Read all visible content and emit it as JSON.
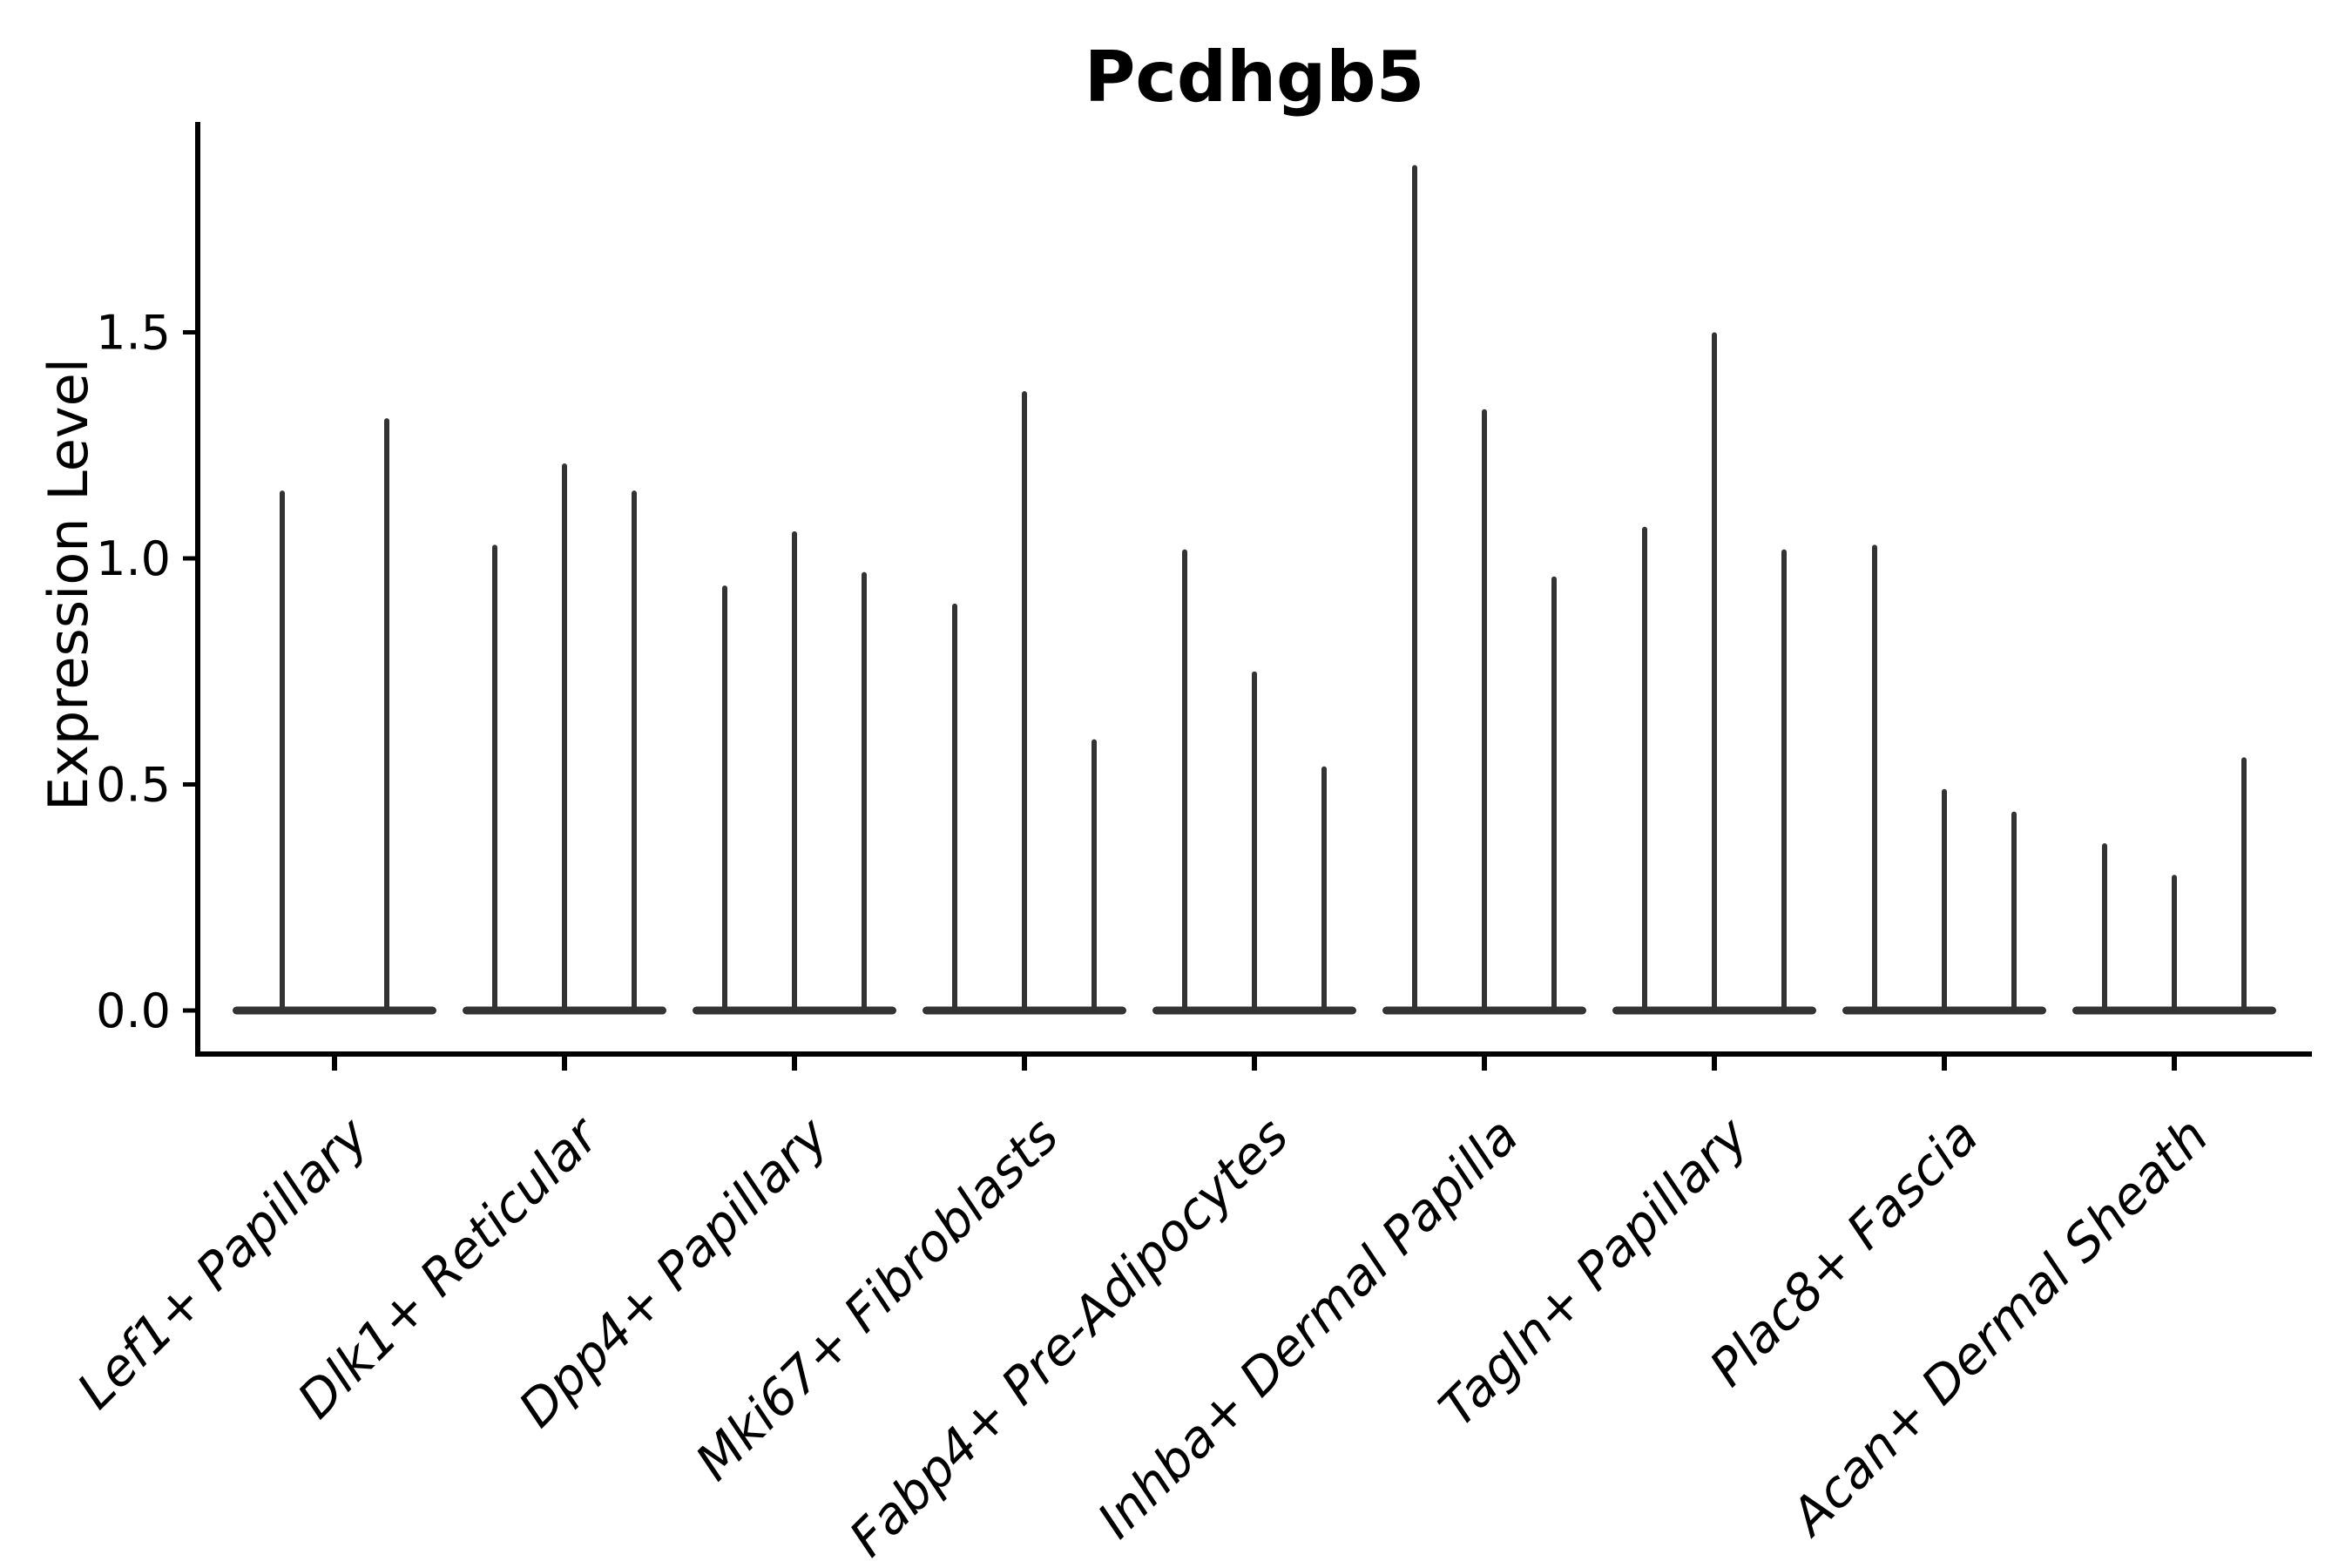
{
  "chart_data": {
    "type": "violin",
    "title": "Pcdhgb5",
    "xlabel": "",
    "ylabel": "Expression Level",
    "y_ticks": [
      0.0,
      0.5,
      1.0,
      1.5
    ],
    "y_tick_labels": [
      "0.0",
      "0.5",
      "1.0",
      "1.5"
    ],
    "ylim": [
      -0.1,
      1.95
    ],
    "grid": false,
    "legend": false,
    "baseline_value": 0,
    "description": "Violin plot of Pcdhgb5 expression per fibroblast cluster; each cluster shows 2-3 narrow spike-shaped violins (mass concentrated at 0 with thin tails up to the max expression value).",
    "violin_color": "#333333",
    "axis_color": "#000000",
    "categories": [
      "Lef1+ Papillary",
      "Dlk1+ Reticular",
      "Dpp4+ Papillary",
      "Mki67+ Fibroblasts",
      "Fabp4+ Pre-Adipocytes",
      "Inhba+ Dermal Papilla",
      "Tagln+ Papillary",
      "Plac8+ Fascia",
      "Acan+ Dermal Sheath"
    ],
    "groups": [
      {
        "label": "Lef1+ Papillary",
        "violin_maxima": [
          1.15,
          1.31
        ]
      },
      {
        "label": "Dlk1+ Reticular",
        "violin_maxima": [
          1.03,
          1.21,
          1.15
        ]
      },
      {
        "label": "Dpp4+ Papillary",
        "violin_maxima": [
          0.94,
          1.06,
          0.97
        ]
      },
      {
        "label": "Mki67+ Fibroblasts",
        "violin_maxima": [
          0.9,
          1.37,
          0.6
        ]
      },
      {
        "label": "Fabp4+ Pre-Adipocytes",
        "violin_maxima": [
          1.02,
          0.75,
          0.54
        ]
      },
      {
        "label": "Inhba+ Dermal Papilla",
        "violin_maxima": [
          1.87,
          1.33,
          0.96
        ]
      },
      {
        "label": "Tagln+ Papillary",
        "violin_maxima": [
          1.07,
          1.5,
          1.02
        ]
      },
      {
        "label": "Plac8+ Fascia",
        "violin_maxima": [
          1.03,
          0.49,
          0.44
        ]
      },
      {
        "label": "Acan+ Dermal Sheath",
        "violin_maxima": [
          0.37,
          0.3,
          0.56
        ]
      }
    ]
  }
}
